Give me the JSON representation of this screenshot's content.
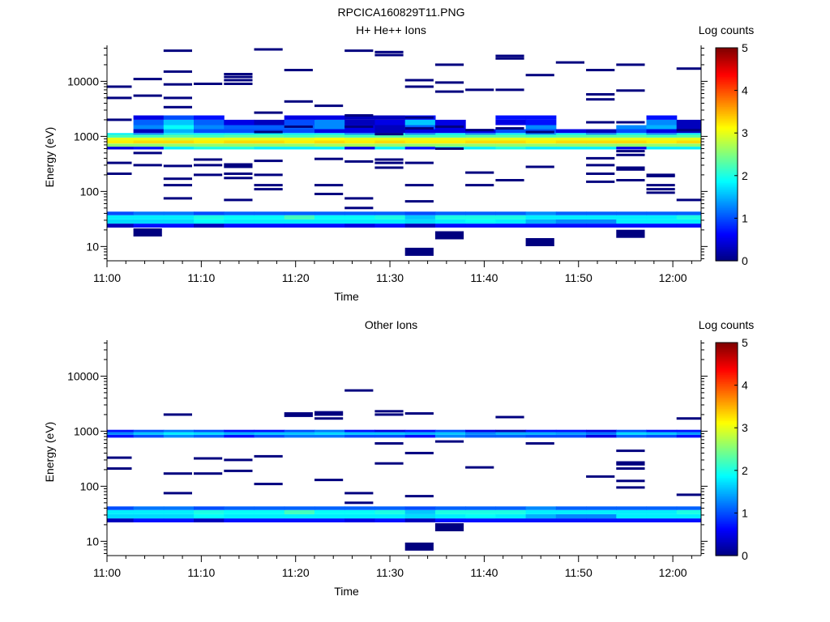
{
  "figure_title": "RPCICA160829T11.PNG",
  "colors": {
    "colormap": [
      "#00007f",
      "#0000ff",
      "#007fff",
      "#00ffff",
      "#7fff7f",
      "#ffff00",
      "#ff7f00",
      "#ff0000",
      "#7f0000"
    ],
    "background": "#ffffff"
  },
  "chart_data": [
    {
      "type": "heatmap",
      "title": "H+ He++ Ions",
      "xlabel": "Time",
      "ylabel": "Energy (eV)",
      "x_tick_labels": [
        "11:00",
        "11:10",
        "11:20",
        "11:30",
        "11:40",
        "11:50",
        "12:00"
      ],
      "x_ticks_min": [
        0,
        10,
        20,
        30,
        40,
        50,
        60
      ],
      "xlim_min": [
        0,
        63
      ],
      "y_scale": "log",
      "ylim": [
        5.5,
        45000
      ],
      "y_tick_labels": [
        "10",
        "100",
        "1000",
        "10000"
      ],
      "y_ticks": [
        10,
        100,
        1000,
        10000
      ],
      "colorbar": {
        "label": "Log counts",
        "range": [
          0,
          5
        ],
        "tick_labels": [
          "0",
          "1",
          "2",
          "3",
          "4",
          "5"
        ],
        "ticks": [
          0,
          1,
          2,
          3,
          4,
          5
        ]
      },
      "time_bins_min": [
        1.2,
        4.4,
        7.6,
        10.8,
        14.0,
        17.2,
        20.4,
        23.6,
        26.8,
        30.0,
        33.2,
        36.4,
        39.6,
        42.8,
        46.0,
        49.2,
        52.4,
        55.6,
        58.8,
        62.0
      ],
      "bands": [
        {
          "e_low": 22,
          "e_high": 26,
          "values": [
            0.3,
            0.7,
            0.7,
            0.3,
            0.7,
            0.7,
            0.7,
            0.7,
            0.5,
            0.7,
            0.3,
            0.7,
            0.7,
            0.7,
            0.7,
            0.7,
            0.7,
            0.7,
            0.7,
            0.7
          ]
        },
        {
          "e_low": 26,
          "e_high": 31,
          "values": [
            1.7,
            1.7,
            1.7,
            1.9,
            1.8,
            1.8,
            1.8,
            1.8,
            1.8,
            1.8,
            1.7,
            1.8,
            1.9,
            1.8,
            1.5,
            1.3,
            1.3,
            1.8,
            1.8,
            1.8
          ]
        },
        {
          "e_low": 31,
          "e_high": 37,
          "values": [
            1.8,
            1.8,
            1.8,
            2.0,
            1.9,
            1.9,
            2.2,
            1.9,
            1.9,
            2.0,
            1.6,
            2.0,
            2.0,
            2.0,
            1.8,
            1.8,
            1.8,
            1.8,
            1.8,
            2.0
          ]
        },
        {
          "e_low": 37,
          "e_high": 43,
          "values": [
            1.0,
            1.2,
            1.2,
            1.0,
            1.1,
            1.1,
            1.1,
            1.1,
            1.1,
            1.1,
            1.0,
            1.1,
            1.1,
            1.1,
            1.3,
            1.1,
            1.1,
            1.1,
            1.1,
            1.1
          ]
        },
        {
          "e_low": 580,
          "e_high": 650,
          "values": [
            0.5,
            0.7,
            1.8,
            2.0,
            2.0,
            1.8,
            1.8,
            1.8,
            0.5,
            1.8,
            0.7,
            1.8,
            1.8,
            2.0,
            1.8,
            1.8,
            1.8,
            0.5,
            1.8,
            1.8
          ]
        },
        {
          "e_low": 650,
          "e_high": 740,
          "values": [
            2.6,
            2.6,
            2.6,
            2.6,
            2.6,
            2.6,
            2.6,
            2.7,
            2.7,
            2.6,
            2.6,
            2.6,
            2.6,
            2.6,
            2.6,
            2.6,
            2.6,
            2.6,
            2.6,
            2.6
          ]
        },
        {
          "e_low": 740,
          "e_high": 840,
          "values": [
            3.2,
            3.3,
            3.3,
            3.2,
            3.3,
            3.3,
            3.2,
            3.3,
            3.2,
            3.3,
            3.2,
            3.2,
            3.3,
            3.3,
            3.2,
            3.3,
            3.3,
            3.3,
            3.2,
            3.3
          ]
        },
        {
          "e_low": 840,
          "e_high": 950,
          "values": [
            3.0,
            3.0,
            2.9,
            3.0,
            3.0,
            3.0,
            3.0,
            3.1,
            3.0,
            3.0,
            3.0,
            3.0,
            3.0,
            3.0,
            3.0,
            3.0,
            3.0,
            3.0,
            3.0,
            3.0
          ]
        },
        {
          "e_low": 950,
          "e_high": 1080,
          "values": [
            2.2,
            2.2,
            2.3,
            2.2,
            2.3,
            2.3,
            2.2,
            2.3,
            2.2,
            2.3,
            2.2,
            2.2,
            2.3,
            2.3,
            2.2,
            2.3,
            2.3,
            2.3,
            2.2,
            2.3
          ]
        },
        {
          "e_low": 1080,
          "e_high": 1150,
          "values": [
            1.8,
            1.3,
            1.8,
            1.8,
            1.8,
            1.8,
            1.8,
            1.8,
            1.3,
            1.8,
            1.3,
            1.8,
            1.3,
            1.8,
            1.3,
            1.8,
            1.3,
            1.8,
            1.3,
            1.8
          ]
        },
        {
          "e_low": 1150,
          "e_high": 1350,
          "values": [
            null,
            0.3,
            1.5,
            1.0,
            1.0,
            1.0,
            1.0,
            0.5,
            0.5,
            0.3,
            0.5,
            0.5,
            0.5,
            1.0,
            1.0,
            0.5,
            0.3,
            1.0,
            0.5,
            0.3
          ]
        },
        {
          "e_low": 1350,
          "e_high": 1600,
          "values": [
            null,
            1.3,
            1.9,
            1.3,
            1.1,
            1.1,
            1.1,
            1.3,
            0.5,
            0.3,
            1.1,
            0.5,
            null,
            null,
            1.3,
            null,
            null,
            1.3,
            1.5,
            0.3
          ]
        },
        {
          "e_low": 1600,
          "e_high": 2000,
          "values": [
            null,
            1.1,
            1.6,
            1.1,
            0.5,
            0.3,
            1.0,
            1.3,
            0.3,
            0.5,
            1.6,
            0.5,
            null,
            0.5,
            0.7,
            null,
            null,
            null,
            1.3,
            0.3
          ]
        },
        {
          "e_low": 2000,
          "e_high": 2400,
          "values": [
            null,
            0.5,
            1.0,
            0.7,
            null,
            null,
            0.5,
            0.5,
            0.3,
            0.3,
            0.7,
            null,
            null,
            0.7,
            0.7,
            null,
            null,
            null,
            0.7,
            null
          ]
        }
      ],
      "sparse_bins": [
        {
          "t": 1.2,
          "e": [
            210,
            330,
            2000,
            5000,
            8000
          ]
        },
        {
          "t": 4.4,
          "e": [
            18,
            300,
            500,
            5500,
            11000
          ]
        },
        {
          "t": 7.6,
          "e": [
            75,
            130,
            170,
            290,
            3400,
            5000,
            8800,
            15000,
            36000
          ]
        },
        {
          "t": 10.8,
          "e": [
            200,
            300,
            380,
            9000
          ]
        },
        {
          "t": 14.0,
          "e": [
            70,
            175,
            210,
            280,
            310,
            9000,
            10500,
            12000,
            13500
          ]
        },
        {
          "t": 17.2,
          "e": [
            110,
            130,
            200,
            360,
            1200,
            2700,
            38000
          ]
        },
        {
          "t": 20.4,
          "e": [
            1500,
            4300,
            16000
          ]
        },
        {
          "t": 23.6,
          "e": [
            90,
            130,
            390,
            3600
          ]
        },
        {
          "t": 26.8,
          "e": [
            50,
            75,
            350,
            1500,
            2400,
            36000
          ]
        },
        {
          "t": 30.0,
          "e": [
            270,
            330,
            380,
            1100,
            30000,
            34000
          ]
        },
        {
          "t": 33.2,
          "e": [
            8,
            66,
            130,
            330,
            1400,
            2200,
            8000,
            10500
          ]
        },
        {
          "t": 36.4,
          "e": [
            16,
            600,
            1500,
            6500,
            9500,
            20000
          ]
        },
        {
          "t": 39.6,
          "e": [
            130,
            220,
            1300,
            7000
          ]
        },
        {
          "t": 42.8,
          "e": [
            160,
            1400,
            7000,
            26000,
            29000
          ]
        },
        {
          "t": 46.0,
          "e": [
            12,
            280,
            1200,
            13000
          ]
        },
        {
          "t": 49.2,
          "e": [
            22000
          ]
        },
        {
          "t": 52.4,
          "e": [
            150,
            210,
            300,
            400,
            1800,
            4700,
            5800,
            16000
          ]
        },
        {
          "t": 55.6,
          "e": [
            17,
            160,
            250,
            270,
            460,
            540,
            1800,
            6800,
            20000
          ]
        },
        {
          "t": 58.8,
          "e": [
            95,
            110,
            130,
            190,
            200
          ]
        },
        {
          "t": 62.0,
          "e": [
            70,
            1300,
            17000
          ]
        }
      ]
    },
    {
      "type": "heatmap",
      "title": "Other Ions",
      "xlabel": "Time",
      "ylabel": "Energy (eV)",
      "x_tick_labels": [
        "11:00",
        "11:10",
        "11:20",
        "11:30",
        "11:40",
        "11:50",
        "12:00"
      ],
      "x_ticks_min": [
        0,
        10,
        20,
        30,
        40,
        50,
        60
      ],
      "xlim_min": [
        0,
        63
      ],
      "y_scale": "log",
      "ylim": [
        5.5,
        45000
      ],
      "y_tick_labels": [
        "10",
        "100",
        "1000",
        "10000"
      ],
      "y_ticks": [
        10,
        100,
        1000,
        10000
      ],
      "colorbar": {
        "label": "Log counts",
        "range": [
          0,
          5
        ],
        "tick_labels": [
          "0",
          "1",
          "2",
          "3",
          "4",
          "5"
        ],
        "ticks": [
          0,
          1,
          2,
          3,
          4,
          5
        ]
      },
      "time_bins_min": [
        1.2,
        4.4,
        7.6,
        10.8,
        14.0,
        17.2,
        20.4,
        23.6,
        26.8,
        30.0,
        33.2,
        36.4,
        39.6,
        42.8,
        46.0,
        49.2,
        52.4,
        55.6,
        58.8,
        62.0
      ],
      "bands": [
        {
          "e_low": 22,
          "e_high": 26,
          "values": [
            0.3,
            0.7,
            0.7,
            0.3,
            0.7,
            0.7,
            0.7,
            0.7,
            0.5,
            0.7,
            0.3,
            0.7,
            0.7,
            0.7,
            0.7,
            0.7,
            0.7,
            0.7,
            0.7,
            0.7
          ]
        },
        {
          "e_low": 26,
          "e_high": 31,
          "values": [
            1.7,
            1.7,
            1.7,
            1.9,
            1.8,
            1.8,
            1.8,
            1.8,
            1.8,
            1.8,
            1.7,
            1.8,
            1.9,
            1.8,
            1.5,
            1.3,
            1.3,
            1.8,
            1.8,
            1.8
          ]
        },
        {
          "e_low": 31,
          "e_high": 37,
          "values": [
            1.8,
            1.8,
            1.8,
            2.0,
            1.9,
            1.9,
            2.2,
            1.9,
            1.9,
            2.0,
            1.6,
            2.0,
            2.0,
            2.0,
            1.8,
            1.8,
            1.8,
            1.8,
            1.8,
            2.0
          ]
        },
        {
          "e_low": 37,
          "e_high": 43,
          "values": [
            1.0,
            1.2,
            1.2,
            1.0,
            1.1,
            1.1,
            1.1,
            1.1,
            1.1,
            1.1,
            1.0,
            1.1,
            1.1,
            1.1,
            1.3,
            1.1,
            1.1,
            1.1,
            1.1,
            1.1
          ]
        },
        {
          "e_low": 760,
          "e_high": 860,
          "values": [
            0.7,
            1.0,
            1.3,
            1.1,
            0.7,
            1.0,
            1.2,
            1.2,
            1.0,
            1.0,
            0.7,
            1.3,
            1.1,
            1.1,
            1.0,
            1.0,
            0.5,
            1.1,
            1.0,
            0.7
          ]
        },
        {
          "e_low": 860,
          "e_high": 960,
          "values": [
            1.3,
            1.6,
            1.8,
            1.7,
            1.5,
            1.6,
            1.6,
            1.7,
            1.6,
            1.6,
            1.5,
            1.6,
            1.3,
            1.5,
            1.5,
            1.4,
            1.2,
            1.7,
            1.6,
            1.4
          ]
        },
        {
          "e_low": 960,
          "e_high": 1060,
          "values": [
            0.7,
            1.0,
            1.2,
            1.0,
            0.7,
            0.7,
            1.0,
            1.2,
            0.7,
            0.5,
            0.7,
            1.0,
            0.5,
            0.3,
            0.7,
            0.7,
            0.5,
            1.0,
            0.7,
            0.7
          ]
        }
      ],
      "sparse_bins": [
        {
          "t": 1.2,
          "e": [
            210,
            330
          ]
        },
        {
          "t": 7.6,
          "e": [
            75,
            170,
            2000
          ]
        },
        {
          "t": 10.8,
          "e": [
            170,
            320
          ]
        },
        {
          "t": 14.0,
          "e": [
            190,
            300
          ]
        },
        {
          "t": 17.2,
          "e": [
            110,
            350
          ]
        },
        {
          "t": 20.4,
          "e": [
            1900,
            2100
          ]
        },
        {
          "t": 23.6,
          "e": [
            130,
            1700,
            2000,
            2200
          ]
        },
        {
          "t": 26.8,
          "e": [
            50,
            75,
            5500
          ]
        },
        {
          "t": 30.0,
          "e": [
            260,
            600,
            2000,
            2300
          ]
        },
        {
          "t": 33.2,
          "e": [
            8,
            66,
            400,
            2100
          ]
        },
        {
          "t": 36.4,
          "e": [
            18,
            650
          ]
        },
        {
          "t": 39.6,
          "e": [
            220
          ]
        },
        {
          "t": 42.8,
          "e": [
            1800
          ]
        },
        {
          "t": 46.0,
          "e": [
            600
          ]
        },
        {
          "t": 52.4,
          "e": [
            150
          ]
        },
        {
          "t": 55.6,
          "e": [
            95,
            125,
            210,
            250,
            270,
            440
          ]
        },
        {
          "t": 62.0,
          "e": [
            70,
            1700
          ]
        }
      ]
    }
  ]
}
